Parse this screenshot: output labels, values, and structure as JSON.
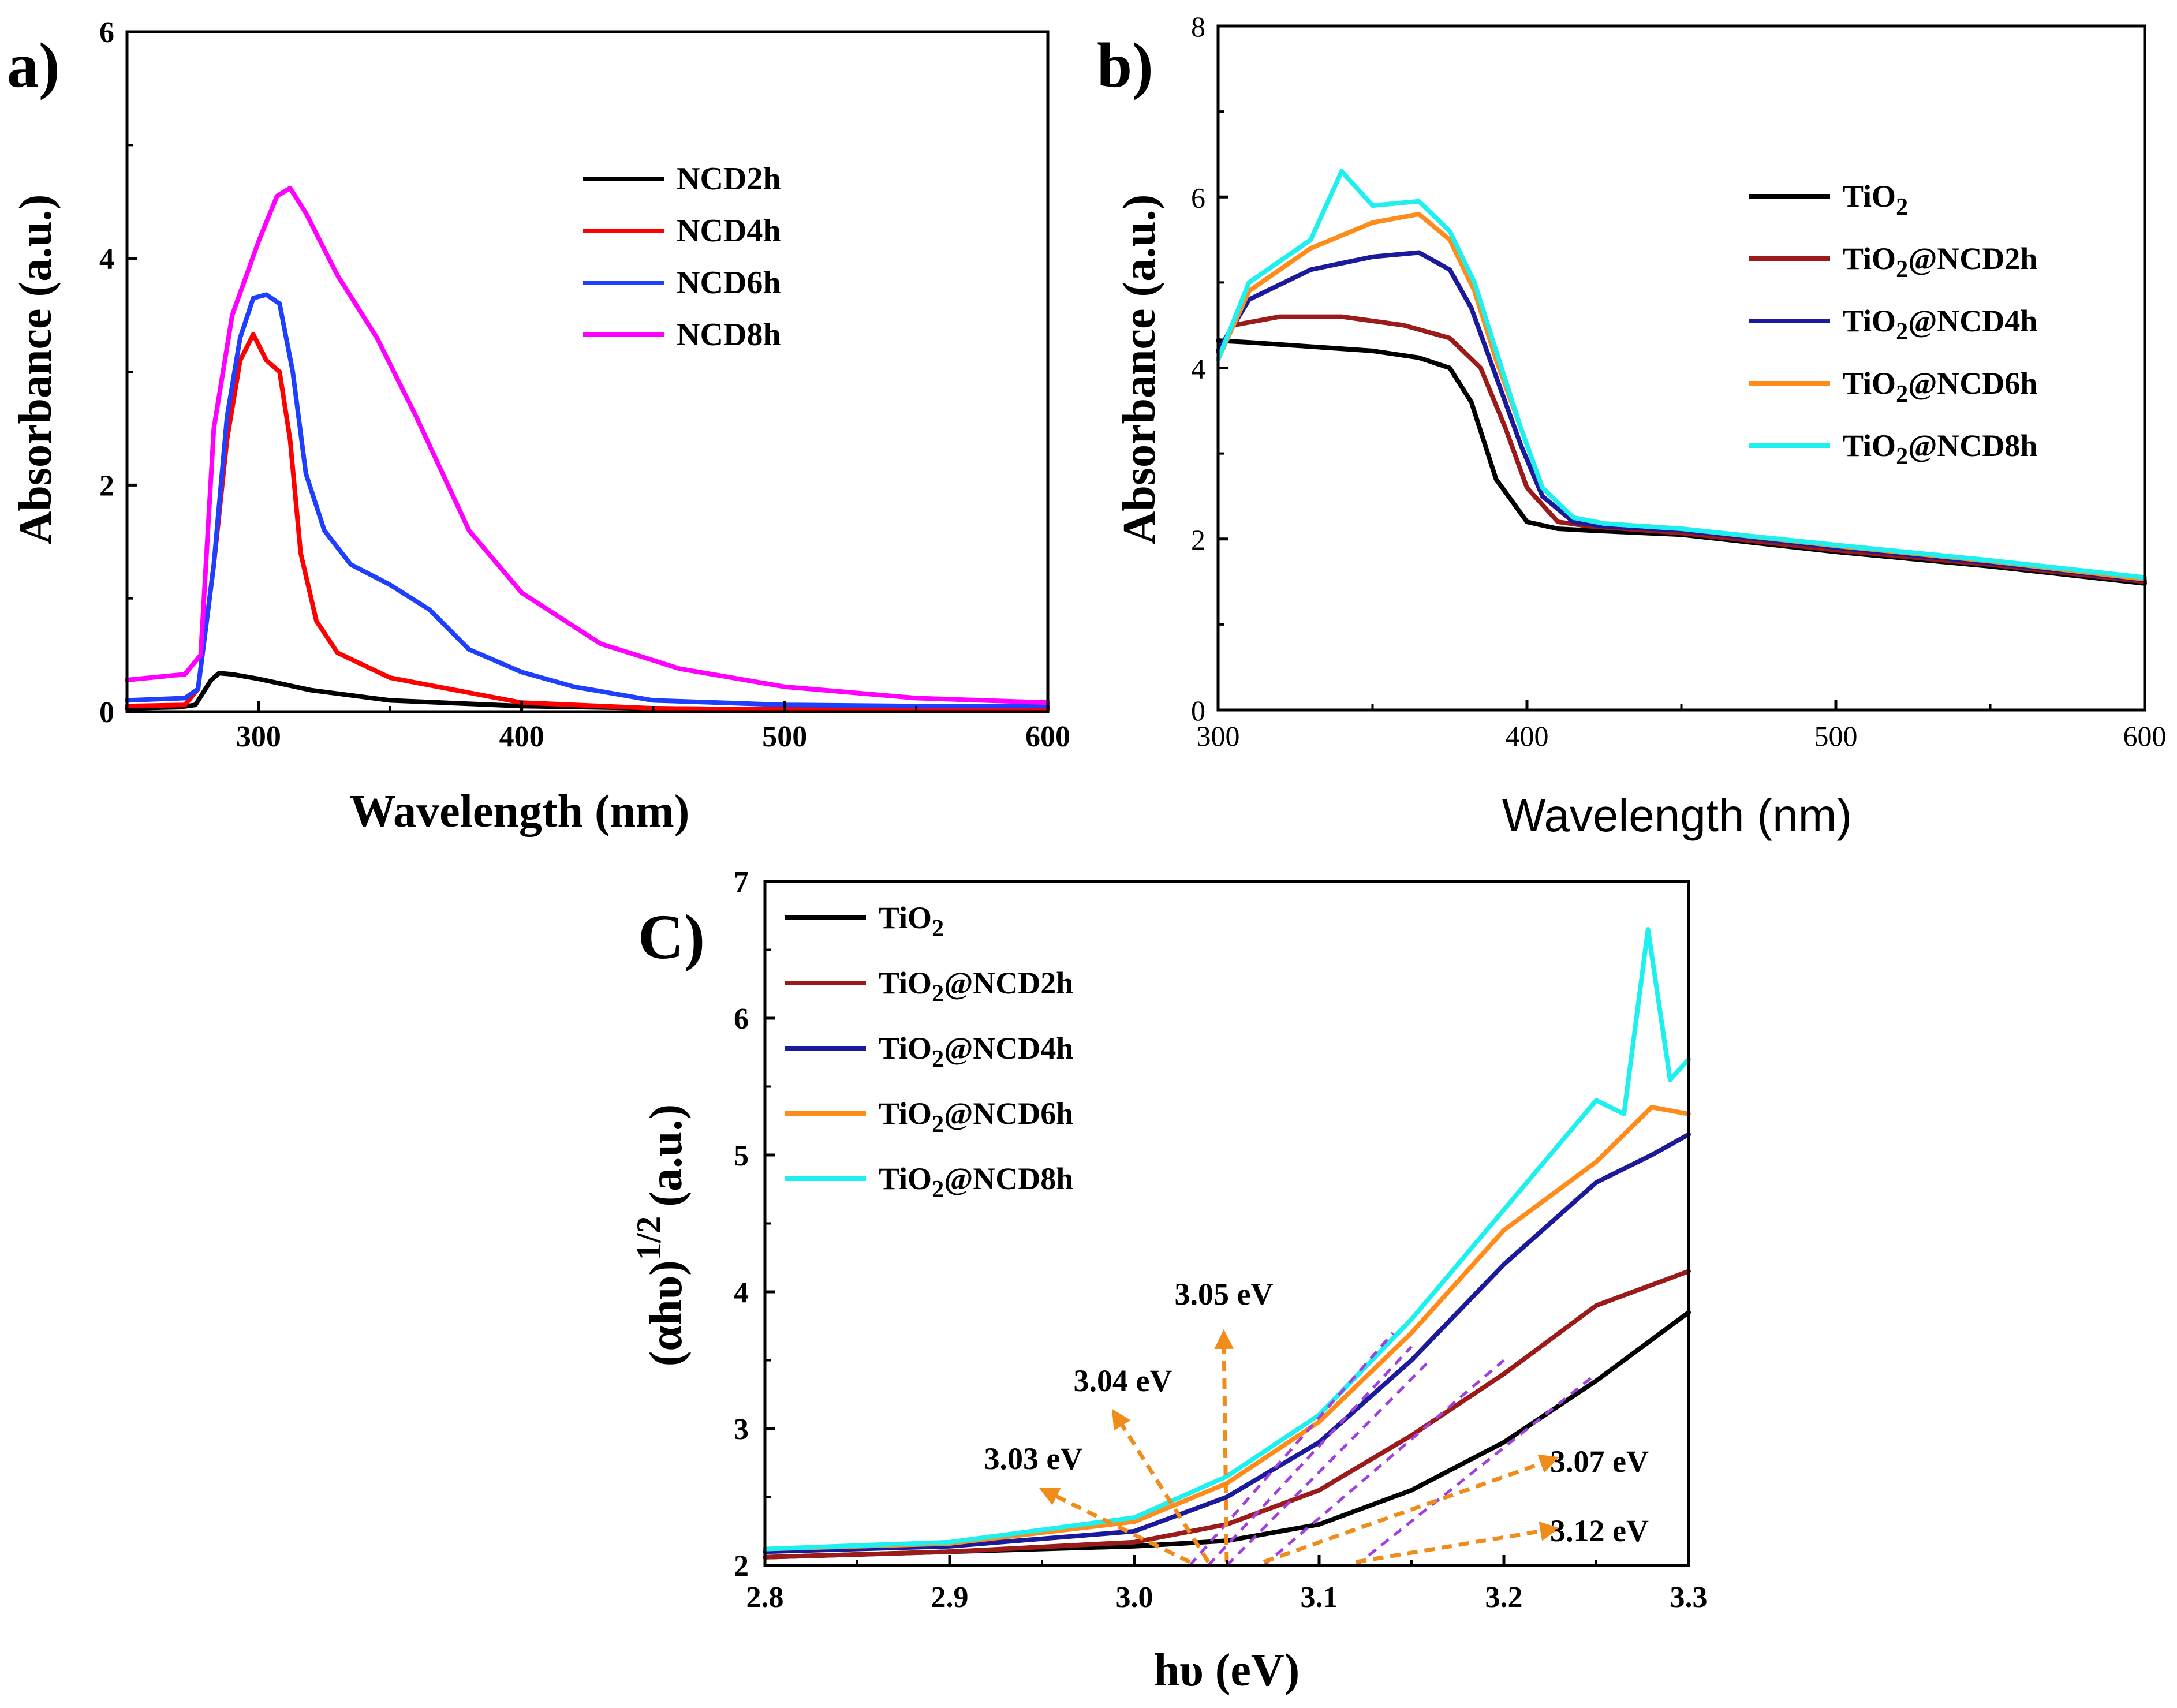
{
  "chart_data": [
    {
      "type": "line",
      "panel_label": "a)",
      "xlabel": "Wavelength (nm)",
      "ylabel": "Absorbance (a.u.)",
      "xlim": [
        250,
        600
      ],
      "ylim": [
        0,
        6
      ],
      "xticks": [
        300,
        400,
        500,
        600
      ],
      "yticks": [
        0,
        2,
        4,
        6
      ],
      "legend_position": "upper-right",
      "series": [
        {
          "name": "NCD2h",
          "color": "#000000",
          "x": [
            250,
            270,
            276,
            282,
            285,
            290,
            300,
            320,
            350,
            400,
            450,
            500,
            550,
            600
          ],
          "y": [
            0.03,
            0.04,
            0.06,
            0.28,
            0.34,
            0.33,
            0.29,
            0.19,
            0.1,
            0.05,
            0.03,
            0.02,
            0.02,
            0.02
          ]
        },
        {
          "name": "NCD4h",
          "color": "#ff0000",
          "x": [
            250,
            272,
            277,
            283,
            288,
            293,
            298,
            303,
            308,
            312,
            316,
            322,
            330,
            350,
            400,
            450,
            500,
            600
          ],
          "y": [
            0.05,
            0.06,
            0.2,
            1.3,
            2.4,
            3.1,
            3.33,
            3.1,
            3.0,
            2.4,
            1.4,
            0.8,
            0.52,
            0.3,
            0.08,
            0.03,
            0.02,
            0.02
          ]
        },
        {
          "name": "NCD6h",
          "color": "#1f3fff",
          "x": [
            250,
            272,
            277,
            283,
            288,
            293,
            298,
            303,
            308,
            313,
            318,
            325,
            335,
            350,
            365,
            380,
            400,
            420,
            450,
            500,
            550,
            600
          ],
          "y": [
            0.1,
            0.12,
            0.2,
            1.3,
            2.6,
            3.3,
            3.65,
            3.68,
            3.6,
            3.0,
            2.1,
            1.6,
            1.3,
            1.12,
            0.9,
            0.55,
            0.35,
            0.22,
            0.1,
            0.06,
            0.05,
            0.05
          ]
        },
        {
          "name": "NCD8h",
          "color": "#ff00ff",
          "x": [
            250,
            272,
            278,
            283,
            290,
            300,
            307,
            312,
            318,
            330,
            345,
            360,
            380,
            400,
            430,
            460,
            500,
            550,
            600
          ],
          "y": [
            0.28,
            0.33,
            0.5,
            2.5,
            3.5,
            4.15,
            4.55,
            4.62,
            4.4,
            3.85,
            3.3,
            2.6,
            1.6,
            1.05,
            0.6,
            0.38,
            0.22,
            0.12,
            0.08
          ]
        }
      ]
    },
    {
      "type": "line",
      "panel_label": "b)",
      "xlabel": "Wavelength (nm)",
      "ylabel": "Absorbance (a.u.)",
      "xlim": [
        300,
        600
      ],
      "ylim": [
        0,
        8
      ],
      "xticks": [
        300,
        400,
        500,
        600
      ],
      "yticks": [
        0,
        2,
        4,
        6,
        8
      ],
      "legend_position": "right",
      "series": [
        {
          "name": "TiO2",
          "label_base": "TiO",
          "label_sub": "2",
          "label_suffix": "",
          "color": "#000000",
          "x": [
            300,
            310,
            330,
            350,
            365,
            375,
            382,
            390,
            400,
            410,
            420,
            450,
            500,
            550,
            600
          ],
          "y": [
            4.32,
            4.3,
            4.25,
            4.2,
            4.12,
            4.0,
            3.6,
            2.7,
            2.2,
            2.12,
            2.1,
            2.05,
            1.85,
            1.68,
            1.48
          ]
        },
        {
          "name": "TiO2@NCD2h",
          "label_base": "TiO",
          "label_sub": "2",
          "label_suffix": "@NCD2h",
          "color": "#9b1a1a",
          "x": [
            300,
            305,
            320,
            340,
            360,
            375,
            385,
            393,
            400,
            410,
            420,
            450,
            500,
            550,
            600
          ],
          "y": [
            4.2,
            4.5,
            4.6,
            4.6,
            4.5,
            4.35,
            4.0,
            3.3,
            2.6,
            2.2,
            2.15,
            2.07,
            1.87,
            1.7,
            1.5
          ]
        },
        {
          "name": "TiO2@NCD4h",
          "label_base": "TiO",
          "label_sub": "2",
          "label_suffix": "@NCD4h",
          "color": "#1a1a9a",
          "x": [
            300,
            310,
            330,
            350,
            365,
            375,
            382,
            390,
            398,
            405,
            415,
            425,
            450,
            500,
            550,
            600
          ],
          "y": [
            4.2,
            4.8,
            5.15,
            5.3,
            5.35,
            5.15,
            4.7,
            3.9,
            3.1,
            2.5,
            2.2,
            2.15,
            2.1,
            1.9,
            1.72,
            1.52
          ]
        },
        {
          "name": "TiO2@NCD6h",
          "label_base": "TiO",
          "label_sub": "2",
          "label_suffix": "@NCD6h",
          "color": "#ff8c1a",
          "x": [
            300,
            310,
            330,
            350,
            365,
            375,
            383,
            390,
            398,
            405,
            415,
            425,
            450,
            500,
            550,
            600
          ],
          "y": [
            4.1,
            4.9,
            5.4,
            5.7,
            5.8,
            5.5,
            4.9,
            4.1,
            3.3,
            2.6,
            2.25,
            2.18,
            2.12,
            1.92,
            1.74,
            1.53
          ]
        },
        {
          "name": "TiO2@NCD8h",
          "label_base": "TiO",
          "label_sub": "2",
          "label_suffix": "@NCD8h",
          "color": "#1ef0f0",
          "x": [
            300,
            310,
            330,
            340,
            350,
            365,
            375,
            383,
            390,
            398,
            405,
            415,
            425,
            450,
            500,
            550,
            600
          ],
          "y": [
            4.1,
            5.0,
            5.5,
            6.3,
            5.9,
            5.95,
            5.6,
            5.0,
            4.2,
            3.3,
            2.6,
            2.25,
            2.18,
            2.12,
            1.93,
            1.75,
            1.55
          ]
        }
      ]
    },
    {
      "type": "line",
      "panel_label": "C)",
      "xlabel": "hυ (eV)",
      "ylabel_main": "(αhυ)",
      "ylabel_exp": "1/2",
      "ylabel_tail": "(a.u.)",
      "xlim": [
        2.8,
        3.3
      ],
      "ylim": [
        2,
        7
      ],
      "xticks": [
        "2.8",
        "2.9",
        "3.0",
        "3.1",
        "3.2",
        "3.3"
      ],
      "yticks": [
        2,
        3,
        4,
        5,
        6,
        7
      ],
      "legend_position": "upper-left",
      "series": [
        {
          "name": "TiO2",
          "label_base": "TiO",
          "label_sub": "2",
          "label_suffix": "",
          "color": "#000000",
          "x": [
            2.8,
            2.9,
            3.0,
            3.05,
            3.1,
            3.15,
            3.2,
            3.25,
            3.3
          ],
          "y": [
            2.06,
            2.1,
            2.14,
            2.18,
            2.3,
            2.55,
            2.9,
            3.35,
            3.85
          ]
        },
        {
          "name": "TiO2@NCD2h",
          "label_base": "TiO",
          "label_sub": "2",
          "label_suffix": "@NCD2h",
          "color": "#9b1a1a",
          "x": [
            2.8,
            2.9,
            3.0,
            3.05,
            3.1,
            3.15,
            3.2,
            3.25,
            3.3
          ],
          "y": [
            2.06,
            2.1,
            2.17,
            2.3,
            2.55,
            2.95,
            3.4,
            3.9,
            4.15
          ]
        },
        {
          "name": "TiO2@NCD4h",
          "label_base": "TiO",
          "label_sub": "2",
          "label_suffix": "@NCD4h",
          "color": "#1a1a9a",
          "x": [
            2.8,
            2.9,
            3.0,
            3.05,
            3.1,
            3.15,
            3.2,
            3.25,
            3.28,
            3.3
          ],
          "y": [
            2.1,
            2.14,
            2.25,
            2.5,
            2.9,
            3.5,
            4.2,
            4.8,
            5.0,
            5.15
          ]
        },
        {
          "name": "TiO2@NCD6h",
          "label_base": "TiO",
          "label_sub": "2",
          "label_suffix": "@NCD6h",
          "color": "#ff8c1a",
          "x": [
            2.8,
            2.9,
            3.0,
            3.05,
            3.1,
            3.15,
            3.2,
            3.25,
            3.28,
            3.3
          ],
          "y": [
            2.12,
            2.16,
            2.32,
            2.6,
            3.05,
            3.7,
            4.45,
            4.95,
            5.35,
            5.3
          ]
        },
        {
          "name": "TiO2@NCD8h",
          "label_base": "TiO",
          "label_sub": "2",
          "label_suffix": "@NCD8h",
          "color": "#1ef0f0",
          "x": [
            2.8,
            2.9,
            3.0,
            3.05,
            3.1,
            3.15,
            3.2,
            3.25,
            3.265,
            3.278,
            3.29,
            3.3
          ],
          "y": [
            2.12,
            2.17,
            2.35,
            2.65,
            3.1,
            3.8,
            4.6,
            5.4,
            5.3,
            6.65,
            5.55,
            5.7
          ]
        }
      ],
      "tangent_lines": [
        {
          "x": [
            3.03,
            3.14
          ],
          "y": [
            2.0,
            3.7
          ]
        },
        {
          "x": [
            3.04,
            3.15
          ],
          "y": [
            2.0,
            3.6
          ]
        },
        {
          "x": [
            3.05,
            3.16
          ],
          "y": [
            2.0,
            3.5
          ]
        },
        {
          "x": [
            3.07,
            3.2
          ],
          "y": [
            2.0,
            3.5
          ]
        },
        {
          "x": [
            3.12,
            3.25
          ],
          "y": [
            2.0,
            3.4
          ]
        }
      ],
      "annotations": [
        {
          "text": "3.05 eV",
          "x": 3.05,
          "y": 2.0
        },
        {
          "text": "3.04 eV",
          "x": 3.04,
          "y": 2.0
        },
        {
          "text": "3.03 eV",
          "x": 3.03,
          "y": 2.0
        },
        {
          "text": "3.07 eV",
          "x": 3.07,
          "y": 2.0
        },
        {
          "text": "3.12 eV",
          "x": 3.12,
          "y": 2.0
        }
      ],
      "tangent_color": "#a040e0",
      "arrow_color": "#f08c1a"
    }
  ]
}
